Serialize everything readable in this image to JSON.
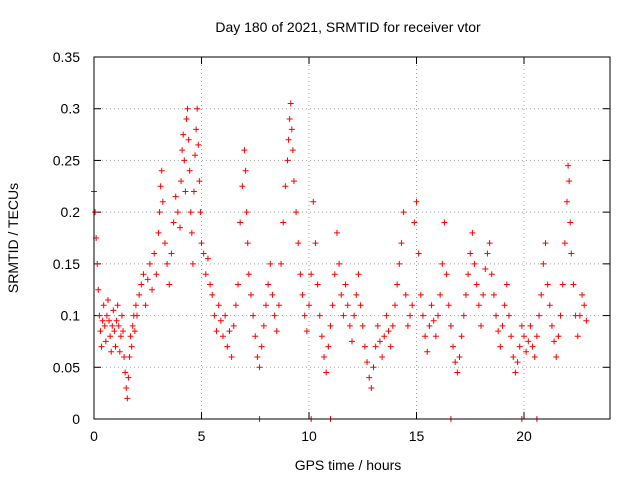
{
  "chart_data": {
    "type": "scatter",
    "title": "Day 180 of 2021, SRMTID for receiver vtor",
    "xlabel": "GPS time / hours",
    "ylabel": "SRMTID / TECUs",
    "xlim": [
      0,
      24
    ],
    "ylim": [
      0,
      0.35
    ],
    "x_ticks": [
      0,
      5,
      10,
      15,
      20
    ],
    "x_tick_labels": [
      "0",
      "5",
      "10",
      "15",
      "20"
    ],
    "y_ticks": [
      0,
      0.05,
      0.1,
      0.15,
      0.2,
      0.25,
      0.3,
      0.35
    ],
    "y_tick_labels": [
      "0",
      "0.05",
      "0.1",
      "0.15",
      "0.2",
      "0.25",
      "0.3",
      "0.35"
    ],
    "grid": true,
    "marker": "+",
    "color": "#ff0000",
    "series": [
      {
        "name": "SRMTID",
        "points": [
          [
            0.0,
            0.22
          ],
          [
            0.05,
            0.2
          ],
          [
            0.1,
            0.175
          ],
          [
            0.15,
            0.15
          ],
          [
            0.2,
            0.125
          ],
          [
            0.25,
            0.1
          ],
          [
            0.3,
            0.085
          ],
          [
            0.35,
            0.07
          ],
          [
            0.4,
            0.095
          ],
          [
            0.45,
            0.11
          ],
          [
            0.5,
            0.09
          ],
          [
            0.55,
            0.075
          ],
          [
            0.6,
            0.1
          ],
          [
            0.65,
            0.115
          ],
          [
            0.7,
            0.095
          ],
          [
            0.75,
            0.08
          ],
          [
            0.8,
            0.065
          ],
          [
            0.85,
            0.09
          ],
          [
            0.9,
            0.105
          ],
          [
            0.95,
            0.085
          ],
          [
            1.0,
            0.07
          ],
          [
            1.05,
            0.095
          ],
          [
            1.1,
            0.11
          ],
          [
            1.15,
            0.09
          ],
          [
            1.2,
            0.065
          ],
          [
            1.25,
            0.08
          ],
          [
            1.3,
            0.1
          ],
          [
            1.35,
            0.085
          ],
          [
            1.4,
            0.06
          ],
          [
            1.45,
            0.045
          ],
          [
            1.5,
            0.03
          ],
          [
            1.55,
            0.02
          ],
          [
            1.6,
            0.04
          ],
          [
            1.65,
            0.06
          ],
          [
            1.7,
            0.08
          ],
          [
            1.75,
            0.07
          ],
          [
            1.8,
            0.09
          ],
          [
            1.85,
            0.1
          ],
          [
            1.9,
            0.085
          ],
          [
            1.95,
            0.11
          ],
          [
            2.0,
            0.1
          ],
          [
            2.1,
            0.12
          ],
          [
            2.2,
            0.13
          ],
          [
            2.3,
            0.14
          ],
          [
            2.4,
            0.11
          ],
          [
            2.5,
            0.135
          ],
          [
            2.6,
            0.15
          ],
          [
            2.7,
            0.125
          ],
          [
            2.8,
            0.16
          ],
          [
            2.9,
            0.14
          ],
          [
            3.0,
            0.18
          ],
          [
            3.05,
            0.2
          ],
          [
            3.1,
            0.225
          ],
          [
            3.15,
            0.24
          ],
          [
            3.2,
            0.21
          ],
          [
            3.3,
            0.17
          ],
          [
            3.4,
            0.15
          ],
          [
            3.5,
            0.13
          ],
          [
            3.6,
            0.16
          ],
          [
            3.7,
            0.19
          ],
          [
            3.8,
            0.215
          ],
          [
            3.9,
            0.2
          ],
          [
            4.0,
            0.185
          ],
          [
            4.05,
            0.23
          ],
          [
            4.1,
            0.26
          ],
          [
            4.15,
            0.275
          ],
          [
            4.2,
            0.25
          ],
          [
            4.25,
            0.22
          ],
          [
            4.3,
            0.29
          ],
          [
            4.35,
            0.3
          ],
          [
            4.4,
            0.27
          ],
          [
            4.45,
            0.24
          ],
          [
            4.5,
            0.2
          ],
          [
            4.55,
            0.18
          ],
          [
            4.6,
            0.15
          ],
          [
            4.65,
            0.22
          ],
          [
            4.7,
            0.255
          ],
          [
            4.75,
            0.28
          ],
          [
            4.8,
            0.3
          ],
          [
            4.85,
            0.265
          ],
          [
            4.9,
            0.23
          ],
          [
            4.95,
            0.2
          ],
          [
            5.0,
            0.17
          ],
          [
            5.1,
            0.16
          ],
          [
            5.2,
            0.14
          ],
          [
            5.3,
            0.155
          ],
          [
            5.4,
            0.13
          ],
          [
            5.5,
            0.12
          ],
          [
            5.6,
            0.1
          ],
          [
            5.7,
            0.085
          ],
          [
            5.8,
            0.11
          ],
          [
            5.9,
            0.095
          ],
          [
            6.0,
            0.08
          ],
          [
            6.1,
            0.1
          ],
          [
            6.2,
            0.07
          ],
          [
            6.3,
            0.085
          ],
          [
            6.4,
            0.06
          ],
          [
            6.5,
            0.09
          ],
          [
            6.6,
            0.11
          ],
          [
            6.7,
            0.13
          ],
          [
            6.8,
            0.19
          ],
          [
            6.9,
            0.225
          ],
          [
            7.0,
            0.26
          ],
          [
            7.05,
            0.24
          ],
          [
            7.1,
            0.2
          ],
          [
            7.15,
            0.17
          ],
          [
            7.2,
            0.14
          ],
          [
            7.3,
            0.12
          ],
          [
            7.4,
            0.1
          ],
          [
            7.5,
            0.08
          ],
          [
            7.6,
            0.06
          ],
          [
            7.7,
            0.05
          ],
          [
            7.8,
            0.07
          ],
          [
            7.9,
            0.09
          ],
          [
            8.0,
            0.11
          ],
          [
            8.1,
            0.13
          ],
          [
            8.2,
            0.15
          ],
          [
            8.3,
            0.12
          ],
          [
            8.4,
            0.1
          ],
          [
            8.5,
            0.085
          ],
          [
            8.6,
            0.11
          ],
          [
            8.7,
            0.15
          ],
          [
            8.8,
            0.19
          ],
          [
            8.9,
            0.225
          ],
          [
            9.0,
            0.25
          ],
          [
            9.05,
            0.27
          ],
          [
            9.1,
            0.29
          ],
          [
            9.15,
            0.305
          ],
          [
            9.2,
            0.28
          ],
          [
            9.25,
            0.26
          ],
          [
            9.3,
            0.23
          ],
          [
            9.4,
            0.2
          ],
          [
            9.5,
            0.17
          ],
          [
            9.6,
            0.14
          ],
          [
            9.7,
            0.12
          ],
          [
            9.8,
            0.1
          ],
          [
            9.9,
            0.085
          ],
          [
            10.0,
            0.11
          ],
          [
            10.1,
            0.14
          ],
          [
            10.2,
            0.21
          ],
          [
            10.3,
            0.17
          ],
          [
            10.4,
            0.13
          ],
          [
            10.5,
            0.1
          ],
          [
            10.6,
            0.08
          ],
          [
            10.7,
            0.06
          ],
          [
            10.8,
            0.045
          ],
          [
            10.9,
            0.07
          ],
          [
            11.0,
            0.09
          ],
          [
            11.1,
            0.11
          ],
          [
            11.2,
            0.14
          ],
          [
            11.3,
            0.18
          ],
          [
            11.4,
            0.15
          ],
          [
            11.5,
            0.12
          ],
          [
            11.6,
            0.1
          ],
          [
            11.7,
            0.13
          ],
          [
            11.8,
            0.11
          ],
          [
            11.9,
            0.09
          ],
          [
            12.0,
            0.075
          ],
          [
            12.1,
            0.1
          ],
          [
            12.2,
            0.12
          ],
          [
            12.3,
            0.14
          ],
          [
            12.4,
            0.11
          ],
          [
            12.5,
            0.09
          ],
          [
            12.6,
            0.07
          ],
          [
            12.7,
            0.055
          ],
          [
            12.8,
            0.04
          ],
          [
            12.9,
            0.03
          ],
          [
            13.0,
            0.05
          ],
          [
            13.1,
            0.07
          ],
          [
            13.2,
            0.09
          ],
          [
            13.3,
            0.075
          ],
          [
            13.4,
            0.06
          ],
          [
            13.5,
            0.08
          ],
          [
            13.6,
            0.1
          ],
          [
            13.7,
            0.085
          ],
          [
            13.8,
            0.07
          ],
          [
            13.9,
            0.09
          ],
          [
            14.0,
            0.11
          ],
          [
            14.1,
            0.13
          ],
          [
            14.2,
            0.15
          ],
          [
            14.3,
            0.17
          ],
          [
            14.4,
            0.2
          ],
          [
            14.5,
            0.12
          ],
          [
            14.6,
            0.09
          ],
          [
            14.7,
            0.1
          ],
          [
            14.8,
            0.11
          ],
          [
            14.9,
            0.19
          ],
          [
            15.0,
            0.21
          ],
          [
            15.1,
            0.16
          ],
          [
            15.2,
            0.12
          ],
          [
            15.3,
            0.1
          ],
          [
            15.4,
            0.08
          ],
          [
            15.5,
            0.065
          ],
          [
            15.6,
            0.09
          ],
          [
            15.7,
            0.11
          ],
          [
            15.8,
            0.095
          ],
          [
            15.9,
            0.08
          ],
          [
            16.0,
            0.1
          ],
          [
            16.1,
            0.12
          ],
          [
            16.2,
            0.15
          ],
          [
            16.3,
            0.19
          ],
          [
            16.4,
            0.14
          ],
          [
            16.5,
            0.11
          ],
          [
            16.6,
            0.09
          ],
          [
            16.7,
            0.07
          ],
          [
            16.8,
            0.055
          ],
          [
            16.9,
            0.045
          ],
          [
            17.0,
            0.06
          ],
          [
            17.1,
            0.08
          ],
          [
            17.2,
            0.1
          ],
          [
            17.3,
            0.12
          ],
          [
            17.4,
            0.14
          ],
          [
            17.5,
            0.16
          ],
          [
            17.6,
            0.18
          ],
          [
            17.7,
            0.15
          ],
          [
            17.8,
            0.13
          ],
          [
            17.9,
            0.11
          ],
          [
            18.0,
            0.09
          ],
          [
            18.1,
            0.12
          ],
          [
            18.2,
            0.145
          ],
          [
            18.3,
            0.16
          ],
          [
            18.4,
            0.17
          ],
          [
            18.5,
            0.14
          ],
          [
            18.6,
            0.12
          ],
          [
            18.7,
            0.1
          ],
          [
            18.8,
            0.085
          ],
          [
            18.9,
            0.07
          ],
          [
            19.0,
            0.09
          ],
          [
            19.1,
            0.11
          ],
          [
            19.2,
            0.13
          ],
          [
            19.3,
            0.1
          ],
          [
            19.4,
            0.08
          ],
          [
            19.5,
            0.06
          ],
          [
            19.6,
            0.045
          ],
          [
            19.7,
            0.055
          ],
          [
            19.8,
            0.07
          ],
          [
            19.9,
            0.09
          ],
          [
            20.0,
            0.08
          ],
          [
            20.1,
            0.065
          ],
          [
            20.2,
            0.075
          ],
          [
            20.3,
            0.09
          ],
          [
            20.4,
            0.07
          ],
          [
            20.5,
            0.06
          ],
          [
            20.6,
            0.08
          ],
          [
            20.7,
            0.1
          ],
          [
            20.8,
            0.12
          ],
          [
            20.9,
            0.15
          ],
          [
            21.0,
            0.17
          ],
          [
            21.1,
            0.13
          ],
          [
            21.2,
            0.11
          ],
          [
            21.3,
            0.09
          ],
          [
            21.4,
            0.075
          ],
          [
            21.5,
            0.06
          ],
          [
            21.6,
            0.08
          ],
          [
            21.7,
            0.1
          ],
          [
            21.8,
            0.13
          ],
          [
            21.9,
            0.17
          ],
          [
            22.0,
            0.21
          ],
          [
            22.05,
            0.245
          ],
          [
            22.1,
            0.23
          ],
          [
            22.15,
            0.19
          ],
          [
            22.2,
            0.16
          ],
          [
            22.3,
            0.13
          ],
          [
            22.4,
            0.1
          ],
          [
            22.5,
            0.08
          ],
          [
            22.6,
            0.1
          ],
          [
            22.7,
            0.12
          ],
          [
            22.8,
            0.11
          ],
          [
            22.9,
            0.095
          ]
        ]
      },
      {
        "name": "zero",
        "points": [
          [
            7.7,
            0
          ],
          [
            10.1,
            0
          ],
          [
            11.0,
            0
          ],
          [
            16.6,
            0
          ],
          [
            19.9,
            0
          ],
          [
            20.6,
            0
          ]
        ]
      }
    ]
  }
}
